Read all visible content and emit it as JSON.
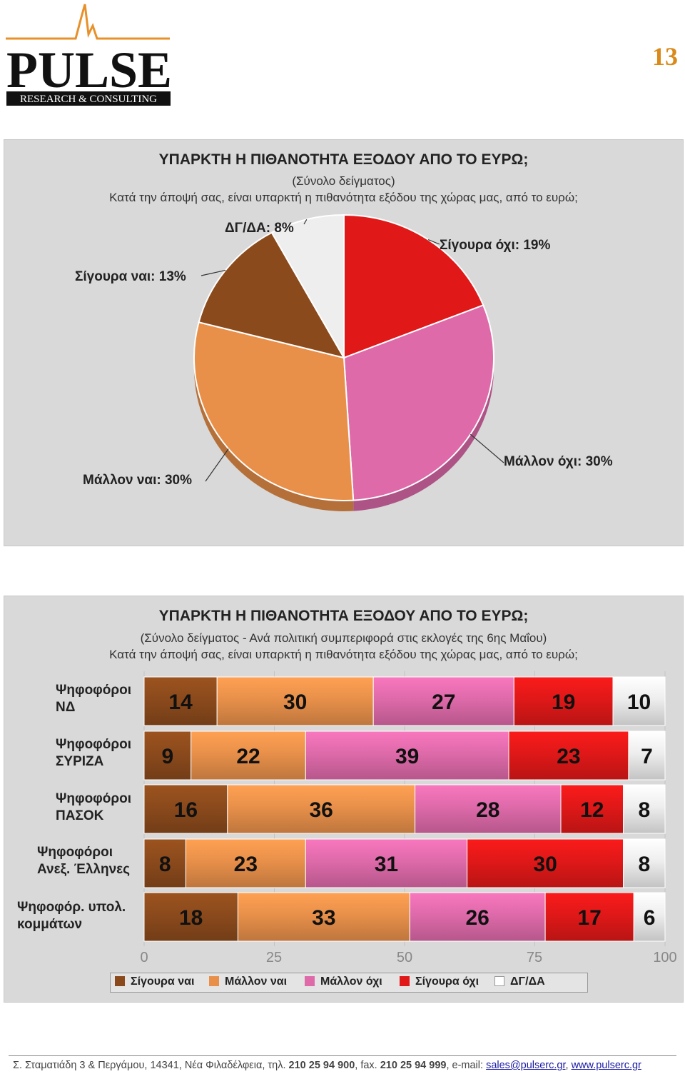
{
  "logo": {
    "name": "PULSE",
    "tagline": "Research & Consulting"
  },
  "page_number": "13",
  "colors": {
    "sure_yes": "#8b4a1c",
    "likely_yes": "#e8904a",
    "likely_no": "#de6aaa",
    "sure_no": "#e01818",
    "dk_na": "#eeeeee",
    "page_number": "#d98a1a"
  },
  "pie_chart": {
    "title": "ΥΠΑΡΚΤΗ Η ΠΙΘΑΝΟΤΗΤΑ ΕΞΟΔΟΥ ΑΠΟ ΤΟ ΕΥΡΩ;",
    "subtitle": "(Σύνολο δείγματος)",
    "question": "Κατά την άποψή σας, είναι υπαρκτή η πιθανότητα εξόδου της χώρας μας, από το ευρώ;",
    "labels": {
      "sure_no": "Σίγουρα όχι: 19%",
      "likely_no": "Μάλλον όχι: 30%",
      "likely_yes": "Μάλλον ναι: 30%",
      "sure_yes": "Σίγουρα ναι: 13%",
      "dk_na": "ΔΓ/ΔΑ: 8%"
    }
  },
  "bar_chart": {
    "title": "ΥΠΑΡΚΤΗ Η ΠΙΘΑΝΟΤΗΤΑ ΕΞΟΔΟΥ ΑΠΟ ΤΟ ΕΥΡΩ;",
    "subtitle": "(Σύνολο δείγματος - Ανά πολιτική συμπεριφορά στις εκλογές της 6ης Μαΐου)",
    "question": "Κατά την άποψή σας, είναι υπαρκτή η πιθανότητα εξόδου της χώρας μας, από το ευρώ;",
    "rows": [
      {
        "line1": "Ψηφοφόροι",
        "line2": "ΝΔ"
      },
      {
        "line1": "Ψηφοφόροι",
        "line2": "ΣΥΡΙΖΑ"
      },
      {
        "line1": "Ψηφοφόροι",
        "line2": "ΠΑΣΟΚ"
      },
      {
        "line1": "Ψηφοφόροι",
        "line2": "Ανεξ. Έλληνες"
      },
      {
        "line1": "Ψηφοφόρ. υπολ.",
        "line2": "κομμάτων"
      }
    ],
    "axis_ticks": [
      "0",
      "25",
      "50",
      "75",
      "100"
    ],
    "legend": [
      "Σίγουρα ναι",
      "Μάλλον ναι",
      "Μάλλον όχι",
      "Σίγουρα όχι",
      "ΔΓ/ΔΑ"
    ]
  },
  "chart_data": [
    {
      "type": "pie",
      "title": "ΥΠΑΡΚΤΗ Η ΠΙΘΑΝΟΤΗΤΑ ΕΞΟΔΟΥ ΑΠΟ ΤΟ ΕΥΡΩ;",
      "subtitle": "(Σύνολο δείγματος)",
      "categories": [
        "Σίγουρα όχι",
        "Μάλλον όχι",
        "Μάλλον ναι",
        "Σίγουρα ναι",
        "ΔΓ/ΔΑ"
      ],
      "values": [
        19,
        30,
        30,
        13,
        8
      ]
    },
    {
      "type": "bar",
      "stacked": true,
      "orientation": "horizontal",
      "title": "ΥΠΑΡΚΤΗ Η ΠΙΘΑΝΟΤΗΤΑ ΕΞΟΔΟΥ ΑΠΟ ΤΟ ΕΥΡΩ;",
      "categories": [
        "Ψηφοφόροι ΝΔ",
        "Ψηφοφόροι ΣΥΡΙΖΑ",
        "Ψηφοφόροι ΠΑΣΟΚ",
        "Ψηφοφόροι Ανεξ. Έλληνες",
        "Ψηφοφόρ. υπολ. κομμάτων"
      ],
      "xlim": [
        0,
        100
      ],
      "legend_position": "bottom",
      "series": [
        {
          "name": "Σίγουρα ναι",
          "values": [
            14,
            9,
            16,
            8,
            18
          ]
        },
        {
          "name": "Μάλλον ναι",
          "values": [
            30,
            22,
            36,
            23,
            33
          ]
        },
        {
          "name": "Μάλλον όχι",
          "values": [
            27,
            39,
            28,
            31,
            26
          ]
        },
        {
          "name": "Σίγουρα όχι",
          "values": [
            19,
            23,
            12,
            30,
            17
          ]
        },
        {
          "name": "ΔΓ/ΔΑ",
          "values": [
            10,
            7,
            8,
            8,
            6
          ]
        }
      ]
    }
  ],
  "footer": {
    "address": "Σ. Σταματιάδη 3  &  Περγάμου,  14341,  Νέα Φιλαδέλφεια,  τηλ.",
    "phone": "210 25 94 900",
    "fax_label": ",  fax.",
    "fax": "210 25 94 999",
    "email_label": ",  e-mail:",
    "email": "sales@pulserc.gr",
    "web": "www.pulserc.gr"
  }
}
